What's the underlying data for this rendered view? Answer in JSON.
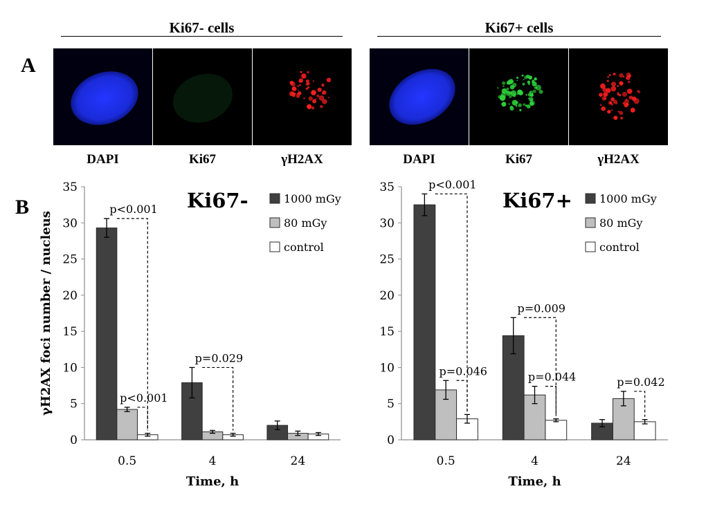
{
  "panel_a": {
    "letter": "A",
    "groups": [
      {
        "title": "Ki67- cells",
        "captions": [
          "DAPI",
          "Ki67",
          "γH2AX"
        ]
      },
      {
        "title": "Ki67+ cells",
        "captions": [
          "DAPI",
          "Ki67",
          "γH2AX"
        ]
      }
    ],
    "colors": {
      "dapi": "#1a2bd9",
      "ki67": "#2fd43a",
      "h2ax": "#ff1f1f",
      "ki67_dim": "#0d2a12"
    }
  },
  "panel_b": {
    "letter": "B"
  },
  "chart_data": [
    {
      "type": "bar",
      "title": "Ki67-",
      "xlabel": "Time, h",
      "ylabel": "γH2AX foci number / nucleus",
      "categories": [
        "0.5",
        "4",
        "24"
      ],
      "ylim": [
        0,
        35
      ],
      "yticks": [
        "0",
        "5",
        "10",
        "15",
        "20",
        "25",
        "30",
        "35"
      ],
      "legend_position": "top-right",
      "series": [
        {
          "name": "1000 mGy",
          "color": "#404040",
          "values": [
            29.3,
            7.9,
            2.0
          ],
          "errors": [
            1.3,
            2.1,
            0.6
          ]
        },
        {
          "name": "80 mGy",
          "color": "#bfbfbf",
          "values": [
            4.2,
            1.1,
            0.9
          ],
          "errors": [
            0.3,
            0.2,
            0.3
          ]
        },
        {
          "name": "control",
          "color": "#ffffff",
          "values": [
            0.7,
            0.7,
            0.8
          ],
          "errors": [
            0.2,
            0.2,
            0.2
          ]
        }
      ],
      "annotations": [
        {
          "text": "p<0.001",
          "cat": 0,
          "from": 0,
          "to": 2
        },
        {
          "text": "p<0.001",
          "cat": 0,
          "from": 1,
          "to": 2
        },
        {
          "text": "p=0.029",
          "cat": 1,
          "from": 0,
          "to": 2
        }
      ]
    },
    {
      "type": "bar",
      "title": "Ki67+",
      "xlabel": "Time, h",
      "ylabel": "",
      "categories": [
        "0.5",
        "4",
        "24"
      ],
      "ylim": [
        0,
        35
      ],
      "yticks": [
        "0",
        "5",
        "10",
        "15",
        "20",
        "25",
        "30",
        "35"
      ],
      "legend_position": "top-right",
      "series": [
        {
          "name": "1000 mGy",
          "color": "#404040",
          "values": [
            32.5,
            14.4,
            2.3
          ],
          "errors": [
            1.5,
            2.5,
            0.5
          ]
        },
        {
          "name": "80 mGy",
          "color": "#bfbfbf",
          "values": [
            6.9,
            6.2,
            5.7
          ],
          "errors": [
            1.3,
            1.2,
            1.0
          ]
        },
        {
          "name": "control",
          "color": "#ffffff",
          "values": [
            2.9,
            2.7,
            2.5
          ],
          "errors": [
            0.6,
            0.2,
            0.3
          ]
        }
      ],
      "annotations": [
        {
          "text": "p<0.001",
          "cat": 0,
          "from": 0,
          "to": 2
        },
        {
          "text": "p=0.046",
          "cat": 0,
          "from": 1,
          "to": 2
        },
        {
          "text": "p=0.009",
          "cat": 1,
          "from": 0,
          "to": 2
        },
        {
          "text": "p=0.044",
          "cat": 1,
          "from": 1,
          "to": 2
        },
        {
          "text": "p=0.042",
          "cat": 2,
          "from": 1,
          "to": 2
        }
      ]
    }
  ]
}
